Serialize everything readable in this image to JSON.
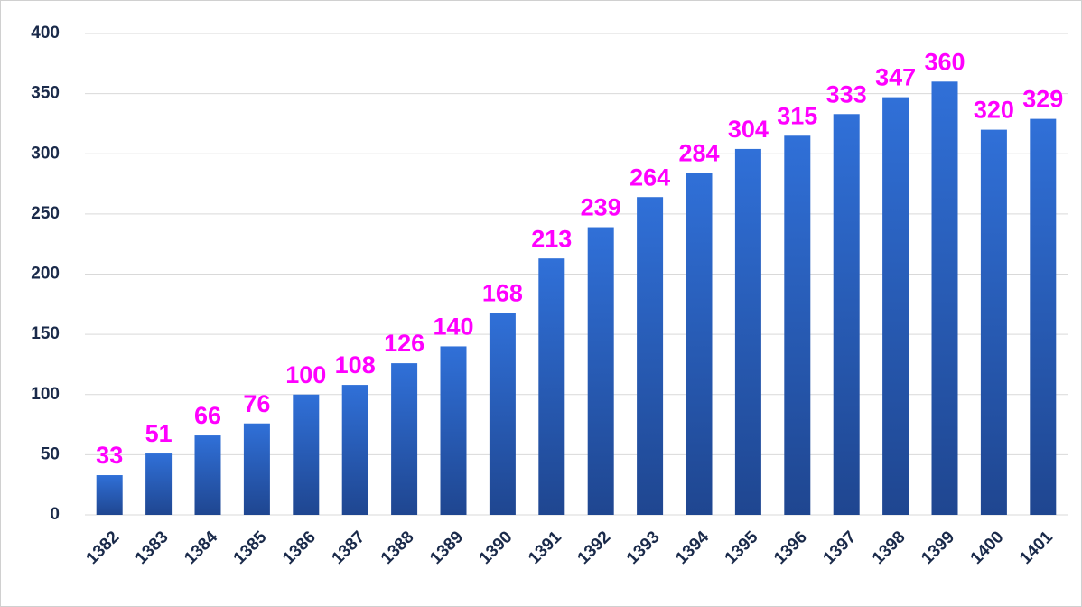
{
  "chart_data": {
    "type": "bar",
    "categories": [
      "1382",
      "1383",
      "1384",
      "1385",
      "1386",
      "1387",
      "1388",
      "1389",
      "1390",
      "1391",
      "1392",
      "1393",
      "1394",
      "1395",
      "1396",
      "1397",
      "1398",
      "1399",
      "1400",
      "1401"
    ],
    "values": [
      33,
      51,
      66,
      76,
      100,
      108,
      126,
      140,
      168,
      213,
      239,
      264,
      284,
      304,
      315,
      333,
      347,
      360,
      320,
      329
    ],
    "color": "#3070d8",
    "label_color": "#ff00ff",
    "ylim": [
      0,
      400
    ],
    "yticks": [
      0,
      50,
      100,
      150,
      200,
      250,
      300,
      350,
      400
    ],
    "grid": true
  }
}
